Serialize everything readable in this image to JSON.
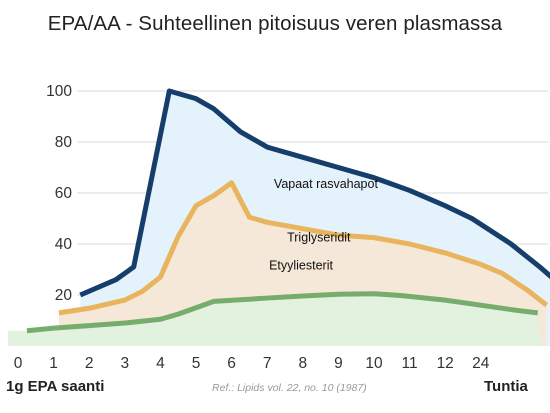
{
  "colors": {
    "vapaat": "#153e6b",
    "vapaat_fill": "#e4f2fb",
    "triglyseridit": "#e8b45e",
    "triglyseridit_fill": "#f5e8d8",
    "etyyliesterit": "#76ad6d",
    "etyyliesterit_fill": "#e3f1df",
    "grid": "#d9d9d9"
  },
  "chart_data": {
    "type": "line",
    "title": "EPA/AA - Suhteellinen pitoisuus veren plasmassa",
    "xlabel": "Tuntia",
    "ylabel": "",
    "x_categories": [
      "0",
      "1",
      "2",
      "3",
      "4",
      "5",
      "6",
      "7",
      "8",
      "9",
      "10",
      "11",
      "12",
      "24"
    ],
    "ylim": [
      0,
      110
    ],
    "y_ticks": [
      20,
      40,
      60,
      80,
      100
    ],
    "grid": true,
    "series": [
      {
        "name": "Vapaat rasvahapot",
        "key": "vapaat",
        "points": [
          [
            1.75,
            20
          ],
          [
            2.75,
            26
          ],
          [
            3.25,
            31
          ],
          [
            4.25,
            100
          ],
          [
            5.0,
            97
          ],
          [
            5.5,
            93
          ],
          [
            6.25,
            84
          ],
          [
            7.0,
            78
          ],
          [
            8.0,
            74
          ],
          [
            9.0,
            70
          ],
          [
            10.0,
            66
          ],
          [
            11.0,
            61
          ],
          [
            12.0,
            55
          ],
          [
            12.75,
            50
          ],
          [
            13.85,
            40
          ],
          [
            14.7,
            30.5
          ],
          [
            15.15,
            25
          ]
        ]
      },
      {
        "name": "Triglyseridit",
        "key": "triglyseridit",
        "points": [
          [
            1.15,
            13
          ],
          [
            2.0,
            14.8
          ],
          [
            3.0,
            18
          ],
          [
            3.5,
            21.5
          ],
          [
            4.0,
            27
          ],
          [
            4.5,
            43
          ],
          [
            5.0,
            55
          ],
          [
            5.5,
            59
          ],
          [
            6.0,
            64
          ],
          [
            6.5,
            50.5
          ],
          [
            7.0,
            48.5
          ],
          [
            8.0,
            46
          ],
          [
            9.0,
            43.5
          ],
          [
            10.0,
            42.5
          ],
          [
            11.0,
            40
          ],
          [
            12.0,
            36.5
          ],
          [
            13.0,
            32
          ],
          [
            13.6,
            28.5
          ],
          [
            14.3,
            22
          ],
          [
            14.85,
            16
          ]
        ]
      },
      {
        "name": "Etyyliesterit",
        "key": "etyyliesterit",
        "points": [
          [
            0.25,
            6
          ],
          [
            1.0,
            7
          ],
          [
            2.0,
            8
          ],
          [
            3.0,
            9
          ],
          [
            4.0,
            10.5
          ],
          [
            4.5,
            12.5
          ],
          [
            5.5,
            17.5
          ],
          [
            7.0,
            18.8
          ],
          [
            8.0,
            19.6
          ],
          [
            9.0,
            20.3
          ],
          [
            10.0,
            20.5
          ],
          [
            10.75,
            19.8
          ],
          [
            12.0,
            18
          ],
          [
            13.0,
            16
          ],
          [
            14.0,
            14
          ],
          [
            14.6,
            13
          ]
        ]
      }
    ],
    "series_label_positions": [
      [
        8.65,
        62
      ],
      [
        8.45,
        41
      ],
      [
        7.95,
        30
      ]
    ]
  },
  "footer": {
    "left": "1g EPA saanti",
    "reference": "Ref.: Lipids vol. 22, no. 10 (1987)",
    "right": "Tuntia"
  }
}
